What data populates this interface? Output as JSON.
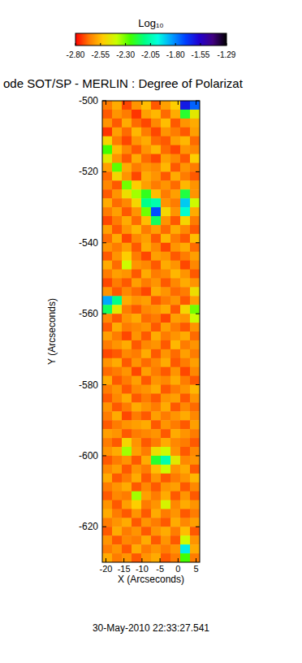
{
  "chart_data": {
    "type": "heatmap",
    "title": "ode SOT/SP - MERLIN : Degree of Polarizat",
    "x_label": "X (Arcseconds)",
    "y_label": "Y (Arcseconds)",
    "annotation": "30-May-2010 22:33:27.541",
    "xlim": [
      -21,
      6
    ],
    "ylim": [
      -630,
      -500
    ],
    "xticks": [
      -20,
      -15,
      -10,
      -5,
      0,
      5
    ],
    "yticks": [
      -620,
      -600,
      -580,
      -560,
      -540,
      -520,
      -500
    ],
    "x_edges": [
      -21,
      -18.3,
      -15.6,
      -12.9,
      -10.2,
      -7.5,
      -4.8,
      -2.1,
      0.6,
      3.3,
      6
    ],
    "y_edges": [
      -500,
      -502.5,
      -505,
      -507.5,
      -510,
      -512.5,
      -515,
      -517.5,
      -520,
      -522.5,
      -525,
      -527.5,
      -530,
      -532.5,
      -535,
      -537.5,
      -540,
      -542.5,
      -545,
      -547.5,
      -550,
      -552.5,
      -555,
      -557.5,
      -560,
      -562.5,
      -565,
      -567.5,
      -570,
      -572.5,
      -575,
      -577.5,
      -580,
      -582.5,
      -585,
      -587.5,
      -590,
      -592.5,
      -595,
      -597.5,
      -600,
      -602.5,
      -605,
      -607.5,
      -610,
      -612.5,
      -615,
      -617.5,
      -620,
      -622.5,
      -625,
      -627.5,
      -630
    ],
    "cells": [
      [
        -2.66,
        -2.58,
        -2.72,
        -2.62,
        -2.55,
        -2.7,
        -2.6,
        -2.52,
        -1.62,
        -1.75
      ],
      [
        -2.7,
        -2.62,
        -2.66,
        -2.74,
        -2.6,
        -2.56,
        -2.68,
        -2.58,
        -2.2,
        -2.45
      ],
      [
        -2.62,
        -2.7,
        -2.58,
        -2.68,
        -2.72,
        -2.64,
        -2.55,
        -2.7,
        -2.62,
        -2.58
      ],
      [
        -2.74,
        -2.6,
        -2.68,
        -2.56,
        -2.66,
        -2.72,
        -2.62,
        -2.66,
        -2.7,
        -2.6
      ],
      [
        -2.5,
        -2.66,
        -2.72,
        -2.62,
        -2.58,
        -2.68,
        -2.7,
        -2.6,
        -2.56,
        -2.68
      ],
      [
        -2.25,
        -2.55,
        -2.64,
        -2.7,
        -2.62,
        -2.56,
        -2.68,
        -2.72,
        -2.62,
        -2.64
      ],
      [
        -2.45,
        -2.62,
        -2.7,
        -2.58,
        -2.68,
        -2.72,
        -2.6,
        -2.64,
        -2.7,
        -2.52
      ],
      [
        -2.6,
        -2.28,
        -2.58,
        -2.66,
        -2.62,
        -2.64,
        -2.56,
        -2.7,
        -2.62,
        -2.66
      ],
      [
        -2.68,
        -2.5,
        -2.62,
        -2.72,
        -2.58,
        -2.62,
        -2.7,
        -2.58,
        -2.66,
        -2.7
      ],
      [
        -2.64,
        -2.7,
        -2.3,
        -2.52,
        -2.6,
        -2.66,
        -2.62,
        -2.68,
        -2.56,
        -2.62
      ],
      [
        -2.7,
        -2.62,
        -2.48,
        -2.35,
        -2.22,
        -2.55,
        -2.66,
        -2.6,
        -2.18,
        -2.62
      ],
      [
        -2.58,
        -2.68,
        -2.64,
        -2.5,
        -2.1,
        -2.05,
        -2.62,
        -2.66,
        -1.9,
        -2.4
      ],
      [
        -2.66,
        -2.6,
        -2.7,
        -2.62,
        -2.3,
        -1.72,
        -2.5,
        -2.62,
        -2.0,
        -2.58
      ],
      [
        -2.72,
        -2.66,
        -2.58,
        -2.68,
        -2.55,
        -2.15,
        -2.62,
        -2.7,
        -2.5,
        -2.66
      ],
      [
        -2.6,
        -2.7,
        -2.62,
        -2.56,
        -2.66,
        -2.6,
        -2.68,
        -2.58,
        -2.64,
        -2.7
      ],
      [
        -2.68,
        -2.58,
        -2.72,
        -2.64,
        -2.6,
        -2.7,
        -2.56,
        -2.66,
        -2.7,
        -2.55
      ],
      [
        -2.62,
        -2.66,
        -2.6,
        -2.7,
        -2.58,
        -2.64,
        -2.72,
        -2.62,
        -2.58,
        -2.68
      ],
      [
        -2.7,
        -2.62,
        -2.52,
        -2.66,
        -2.72,
        -2.6,
        -2.62,
        -2.7,
        -2.66,
        -2.6
      ],
      [
        -2.58,
        -2.68,
        -2.4,
        -2.62,
        -2.64,
        -2.7,
        -2.58,
        -2.62,
        -2.72,
        -2.64
      ],
      [
        -2.66,
        -2.6,
        -2.62,
        -2.7,
        -2.58,
        -2.66,
        -2.64,
        -2.56,
        -2.62,
        -2.7
      ],
      [
        -2.72,
        -2.66,
        -2.7,
        -2.6,
        -2.66,
        -2.62,
        -2.7,
        -2.64,
        -2.58,
        -2.62
      ],
      [
        -2.62,
        -2.7,
        -2.64,
        -2.68,
        -2.72,
        -2.58,
        -2.62,
        -2.68,
        -2.66,
        -2.48
      ],
      [
        -1.85,
        -2.1,
        -2.58,
        -2.62,
        -2.6,
        -2.7,
        -2.66,
        -2.62,
        -2.7,
        -2.6
      ],
      [
        -2.15,
        -2.45,
        -2.66,
        -2.7,
        -2.64,
        -2.62,
        -2.58,
        -2.7,
        -2.5,
        -2.3
      ],
      [
        -2.64,
        -2.7,
        -2.62,
        -2.58,
        -2.68,
        -2.66,
        -2.72,
        -2.6,
        -2.62,
        -2.4
      ],
      [
        -2.7,
        -2.58,
        -2.66,
        -2.64,
        -2.62,
        -2.7,
        -2.6,
        -2.66,
        -2.7,
        -2.62
      ],
      [
        -2.6,
        -2.66,
        -2.72,
        -2.62,
        -2.7,
        -2.58,
        -2.66,
        -2.62,
        -2.58,
        -2.68
      ],
      [
        -2.66,
        -2.62,
        -2.58,
        -2.7,
        -2.64,
        -2.62,
        -2.7,
        -2.56,
        -2.66,
        -2.62
      ],
      [
        -2.72,
        -2.7,
        -2.64,
        -2.66,
        -2.58,
        -2.7,
        -2.62,
        -2.68,
        -2.6,
        -2.66
      ],
      [
        -2.62,
        -2.58,
        -2.7,
        -2.62,
        -2.68,
        -2.64,
        -2.58,
        -2.7,
        -2.66,
        -2.6
      ],
      [
        -2.68,
        -2.66,
        -2.62,
        -2.72,
        -2.6,
        -2.66,
        -2.7,
        -2.62,
        -2.72,
        -2.64
      ],
      [
        -2.58,
        -2.7,
        -2.66,
        -2.6,
        -2.7,
        -2.62,
        -2.64,
        -2.58,
        -2.66,
        -2.7
      ],
      [
        -2.66,
        -2.62,
        -2.7,
        -2.64,
        -2.62,
        -2.58,
        -2.7,
        -2.66,
        -2.62,
        -2.56
      ],
      [
        -2.7,
        -2.64,
        -2.58,
        -2.7,
        -2.66,
        -2.7,
        -2.62,
        -2.6,
        -2.7,
        -2.62
      ],
      [
        -2.62,
        -2.7,
        -2.66,
        -2.58,
        -2.62,
        -2.66,
        -2.58,
        -2.7,
        -2.64,
        -2.68
      ],
      [
        -2.66,
        -2.58,
        -2.72,
        -2.66,
        -2.7,
        -2.6,
        -2.66,
        -2.62,
        -2.58,
        -2.64
      ],
      [
        -2.7,
        -2.66,
        -2.62,
        -2.6,
        -2.58,
        -2.7,
        -2.62,
        -2.66,
        -2.7,
        -2.6
      ],
      [
        -2.6,
        -2.62,
        -2.7,
        -2.66,
        -2.64,
        -2.62,
        -2.7,
        -2.58,
        -2.62,
        -2.66
      ],
      [
        -2.66,
        -2.7,
        -2.5,
        -2.62,
        -2.7,
        -2.66,
        -2.58,
        -2.64,
        -2.66,
        -2.7
      ],
      [
        -2.62,
        -2.58,
        -2.35,
        -2.6,
        -2.66,
        -2.48,
        -2.4,
        -2.62,
        -2.7,
        -2.64
      ],
      [
        -2.7,
        -2.66,
        -2.62,
        -2.7,
        -2.58,
        -2.2,
        -2.05,
        -2.45,
        -2.64,
        -2.62
      ],
      [
        -2.64,
        -2.6,
        -2.7,
        -2.62,
        -2.66,
        -2.55,
        -2.4,
        -2.62,
        -2.58,
        -2.7
      ],
      [
        -2.58,
        -2.7,
        -2.66,
        -2.58,
        -2.7,
        -2.62,
        -2.7,
        -2.66,
        -2.62,
        -2.56
      ],
      [
        -2.66,
        -2.62,
        -2.58,
        -2.7,
        -2.64,
        -2.7,
        -2.62,
        -2.6,
        -2.7,
        -2.64
      ],
      [
        -2.7,
        -2.64,
        -2.66,
        -2.35,
        -2.6,
        -2.66,
        -2.58,
        -2.7,
        -2.62,
        -2.7
      ],
      [
        -2.62,
        -2.7,
        -2.6,
        -2.52,
        -2.66,
        -2.62,
        -2.42,
        -2.64,
        -2.58,
        -2.62
      ],
      [
        -2.58,
        -2.66,
        -2.7,
        -2.62,
        -2.7,
        -2.58,
        -2.66,
        -2.62,
        -2.7,
        -2.66
      ],
      [
        -2.66,
        -2.62,
        -2.58,
        -2.7,
        -2.62,
        -2.66,
        -2.7,
        -2.58,
        -2.64,
        -2.6
      ],
      [
        -2.7,
        -2.58,
        -2.66,
        -2.62,
        -2.7,
        -2.62,
        -2.58,
        -2.66,
        -2.55,
        -2.7
      ],
      [
        -2.62,
        -2.7,
        -2.64,
        -2.66,
        -2.58,
        -2.7,
        -2.62,
        -2.7,
        -2.4,
        -2.62
      ],
      [
        -2.66,
        -2.62,
        -2.7,
        -2.58,
        -2.66,
        -2.62,
        -2.66,
        -2.62,
        -1.95,
        -2.58
      ],
      [
        -2.58,
        -2.66,
        -2.62,
        -2.7,
        -2.62,
        -2.58,
        -2.7,
        -2.66,
        -2.25,
        -2.66
      ]
    ],
    "colorbar": {
      "label": "Log₁₀",
      "range": [
        -2.8,
        -1.29
      ],
      "ticks": [
        {
          "value": -2.8,
          "label": "-2.80"
        },
        -2.55,
        {
          "value": -2.3,
          "label": "-2.30"
        },
        -2.05,
        {
          "value": -1.8,
          "label": "-1.80"
        },
        -1.55,
        -1.29
      ],
      "colors": [
        "#ff0000",
        "#ff7a00",
        "#ffcc00",
        "#c8ff00",
        "#40ff00",
        "#00ff80",
        "#00ffe0",
        "#00a0ff",
        "#0040ff",
        "#2000d0",
        "#400080",
        "#000000"
      ]
    }
  }
}
